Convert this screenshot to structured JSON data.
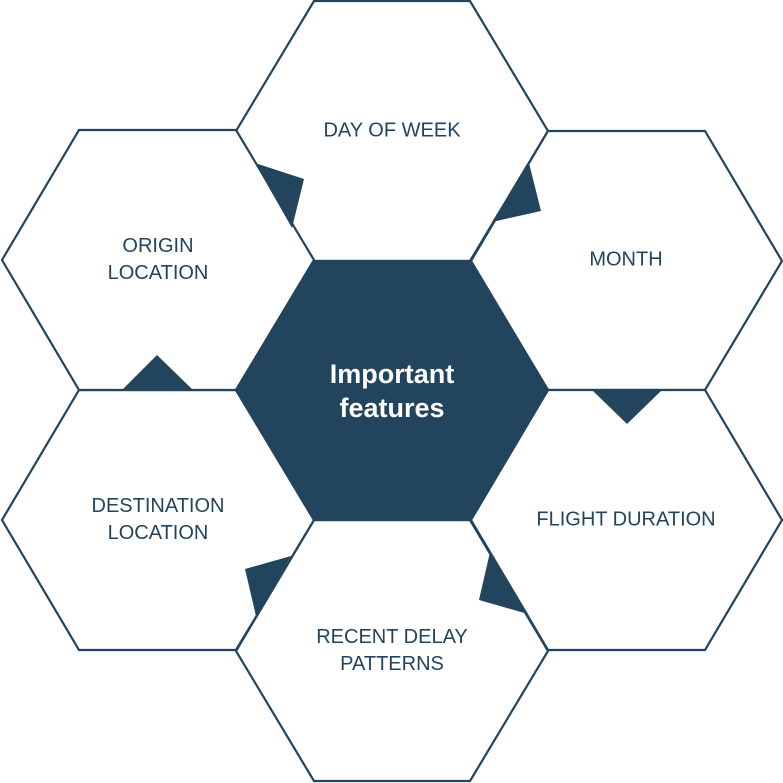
{
  "colors": {
    "primary": "#23445d",
    "background": "#ffffff",
    "center_text": "#ffffff"
  },
  "center": {
    "line1": "Important",
    "line2": "features"
  },
  "features": {
    "day_of_week": {
      "line1": "DAY OF WEEK"
    },
    "month": {
      "line1": "MONTH"
    },
    "flight_duration": {
      "line1": "FLIGHT DURATION"
    },
    "recent_delay_patterns": {
      "line1": "RECENT DELAY",
      "line2": "PATTERNS"
    },
    "destination_location": {
      "line1": "DESTINATION",
      "line2": "LOCATION"
    },
    "origin_location": {
      "line1": "ORIGIN",
      "line2": "LOCATION"
    }
  }
}
